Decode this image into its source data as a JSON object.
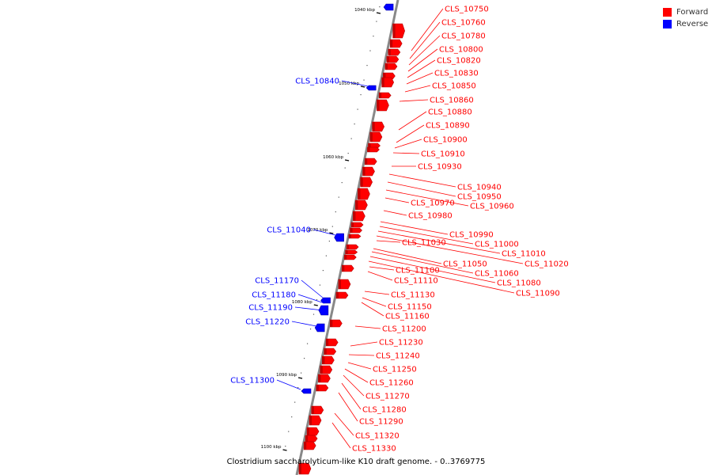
{
  "colors": {
    "forward": "#ff0000",
    "reverse": "#0000ff",
    "backbone": "#888888"
  },
  "legend": [
    {
      "label": "Forward",
      "color": "#ff0000"
    },
    {
      "label": "Reverse",
      "color": "#0000ff"
    }
  ],
  "caption": "Clostridium saccharolyticum-like K10 draft genome. - 0..3769775",
  "ticks": [
    {
      "label": "1040 kbp",
      "bp": 1040000
    },
    {
      "label": "1050 kbp",
      "bp": 1050000
    },
    {
      "label": "1060 kbp",
      "bp": 1060000
    },
    {
      "label": "1070 kbp",
      "bp": 1070000
    },
    {
      "label": "1080 kbp",
      "bp": 1080000
    },
    {
      "label": "1090 kbp",
      "bp": 1090000
    },
    {
      "label": "1100 kbp",
      "bp": 1100000
    }
  ],
  "genes": [
    {
      "label": "CLS_10750",
      "strand": "forward"
    },
    {
      "label": "CLS_10760",
      "strand": "forward"
    },
    {
      "label": "CLS_10780",
      "strand": "forward"
    },
    {
      "label": "CLS_10800",
      "strand": "forward"
    },
    {
      "label": "CLS_10820",
      "strand": "forward"
    },
    {
      "label": "CLS_10830",
      "strand": "forward"
    },
    {
      "label": "CLS_10840",
      "strand": "reverse"
    },
    {
      "label": "CLS_10850",
      "strand": "forward"
    },
    {
      "label": "CLS_10860",
      "strand": "forward"
    },
    {
      "label": "CLS_10880",
      "strand": "forward"
    },
    {
      "label": "CLS_10890",
      "strand": "forward"
    },
    {
      "label": "CLS_10900",
      "strand": "forward"
    },
    {
      "label": "CLS_10910",
      "strand": "forward"
    },
    {
      "label": "CLS_10930",
      "strand": "forward"
    },
    {
      "label": "CLS_10940",
      "strand": "forward"
    },
    {
      "label": "CLS_10950",
      "strand": "forward"
    },
    {
      "label": "CLS_10960",
      "strand": "forward"
    },
    {
      "label": "CLS_10970",
      "strand": "forward"
    },
    {
      "label": "CLS_10980",
      "strand": "forward"
    },
    {
      "label": "CLS_10990",
      "strand": "forward"
    },
    {
      "label": "CLS_11000",
      "strand": "forward"
    },
    {
      "label": "CLS_11010",
      "strand": "forward"
    },
    {
      "label": "CLS_11020",
      "strand": "forward"
    },
    {
      "label": "CLS_11030",
      "strand": "forward"
    },
    {
      "label": "CLS_11040",
      "strand": "reverse"
    },
    {
      "label": "CLS_11050",
      "strand": "forward"
    },
    {
      "label": "CLS_11060",
      "strand": "forward"
    },
    {
      "label": "CLS_11080",
      "strand": "forward"
    },
    {
      "label": "CLS_11090",
      "strand": "forward"
    },
    {
      "label": "CLS_11100",
      "strand": "forward"
    },
    {
      "label": "CLS_11110",
      "strand": "forward"
    },
    {
      "label": "CLS_11130",
      "strand": "forward"
    },
    {
      "label": "CLS_11150",
      "strand": "forward"
    },
    {
      "label": "CLS_11160",
      "strand": "forward"
    },
    {
      "label": "CLS_11170",
      "strand": "reverse"
    },
    {
      "label": "CLS_11180",
      "strand": "reverse"
    },
    {
      "label": "CLS_11190",
      "strand": "reverse"
    },
    {
      "label": "CLS_11200",
      "strand": "forward"
    },
    {
      "label": "CLS_11220",
      "strand": "reverse"
    },
    {
      "label": "CLS_11230",
      "strand": "forward"
    },
    {
      "label": "CLS_11240",
      "strand": "forward"
    },
    {
      "label": "CLS_11250",
      "strand": "forward"
    },
    {
      "label": "CLS_11260",
      "strand": "forward"
    },
    {
      "label": "CLS_11270",
      "strand": "forward"
    },
    {
      "label": "CLS_11280",
      "strand": "forward"
    },
    {
      "label": "CLS_11290",
      "strand": "forward"
    },
    {
      "label": "CLS_11300",
      "strand": "reverse"
    },
    {
      "label": "CLS_11320",
      "strand": "forward"
    },
    {
      "label": "CLS_11330",
      "strand": "forward"
    }
  ]
}
